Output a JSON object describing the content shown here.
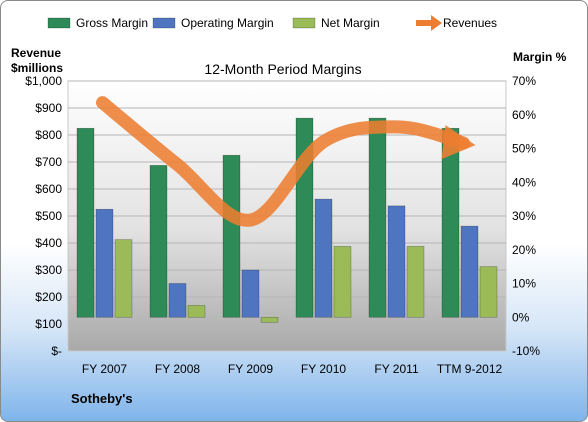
{
  "chart_data": {
    "type": "bar",
    "title": "12-Month Period Margins",
    "company": "Sotheby's",
    "categories": [
      "FY 2007",
      "FY 2008",
      "FY 2009",
      "FY 2010",
      "FY 2011",
      "TTM 9-2012"
    ],
    "series": [
      {
        "name": "Gross Margin",
        "axis": "right",
        "color": "#2e8b57",
        "values": [
          56,
          45,
          48,
          59,
          59,
          56
        ]
      },
      {
        "name": "Operating Margin",
        "axis": "right",
        "color": "#4f74c0",
        "values": [
          32,
          10,
          14,
          35,
          33,
          27
        ]
      },
      {
        "name": "Net Margin",
        "axis": "right",
        "color": "#9bbb59",
        "values": [
          23,
          3.5,
          -1.5,
          21,
          21,
          15
        ]
      },
      {
        "name": "Revenues",
        "axis": "left",
        "color": "#ed7d31",
        "type": "line-arrow",
        "values": [
          920,
          690,
          485,
          775,
          830,
          770
        ]
      }
    ],
    "left_axis": {
      "label_line1": "Revenue",
      "label_line2": "$millions",
      "ylim": [
        0,
        1000
      ],
      "ticks": [
        {
          "v": 0,
          "t": "$-"
        },
        {
          "v": 100,
          "t": "$100"
        },
        {
          "v": 200,
          "t": "$200"
        },
        {
          "v": 300,
          "t": "$300"
        },
        {
          "v": 400,
          "t": "$400"
        },
        {
          "v": 500,
          "t": "$500"
        },
        {
          "v": 600,
          "t": "$600"
        },
        {
          "v": 700,
          "t": "$700"
        },
        {
          "v": 800,
          "t": "$800"
        },
        {
          "v": 900,
          "t": "$900"
        },
        {
          "v": 1000,
          "t": "$1,000"
        }
      ]
    },
    "right_axis": {
      "label": "Margin %",
      "ylim": [
        -10,
        70
      ],
      "ticks": [
        {
          "v": 70,
          "t": "70%"
        },
        {
          "v": 60,
          "t": "60%"
        },
        {
          "v": 50,
          "t": "50%"
        },
        {
          "v": 40,
          "t": "40%"
        },
        {
          "v": 30,
          "t": "30%"
        },
        {
          "v": 20,
          "t": "20%"
        },
        {
          "v": 10,
          "t": "10%"
        },
        {
          "v": 0,
          "t": "0%"
        },
        {
          "v": -10,
          "t": "-10%"
        }
      ]
    },
    "grid": true,
    "legend": "top"
  }
}
